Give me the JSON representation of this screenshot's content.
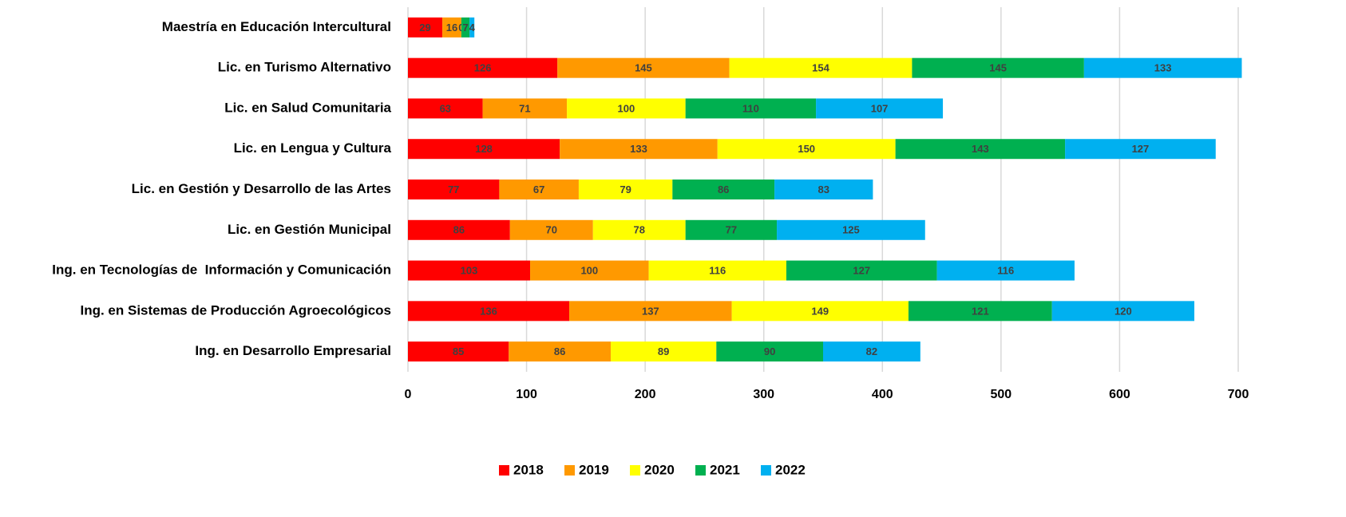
{
  "chart_data": {
    "type": "stacked_barh",
    "categories": [
      "Maestría en Educación Intercultural",
      "Lic. en Turismo Alternativo",
      "Lic. en Salud Comunitaria",
      "Lic. en Lengua y Cultura",
      "Lic. en Gestión y Desarrollo de las Artes",
      "Lic. en Gestión Municipal",
      "Ing. en Tecnologías de  Información y Comunicación",
      "Ing. en Sistemas de Producción Agroecológicos",
      "Ing. en Desarrollo Empresarial"
    ],
    "series": [
      {
        "name": "2018",
        "color": "#ff0000",
        "values": [
          29,
          126,
          63,
          128,
          77,
          86,
          103,
          136,
          85
        ]
      },
      {
        "name": "2019",
        "color": "#ff9900",
        "values": [
          16,
          145,
          71,
          133,
          67,
          70,
          100,
          137,
          86
        ]
      },
      {
        "name": "2020",
        "color": "#ffff00",
        "values": [
          0,
          154,
          100,
          150,
          79,
          78,
          116,
          149,
          89
        ]
      },
      {
        "name": "2021",
        "color": "#00b050",
        "values": [
          7,
          145,
          110,
          143,
          86,
          77,
          127,
          121,
          90
        ]
      },
      {
        "name": "2022",
        "color": "#00b0f0",
        "values": [
          4,
          133,
          107,
          127,
          83,
          125,
          116,
          120,
          82
        ]
      }
    ],
    "xlim": [
      0,
      700
    ],
    "xticks": [
      0,
      100,
      200,
      300,
      400,
      500,
      600,
      700
    ],
    "grid": true,
    "legend": "bottom"
  }
}
